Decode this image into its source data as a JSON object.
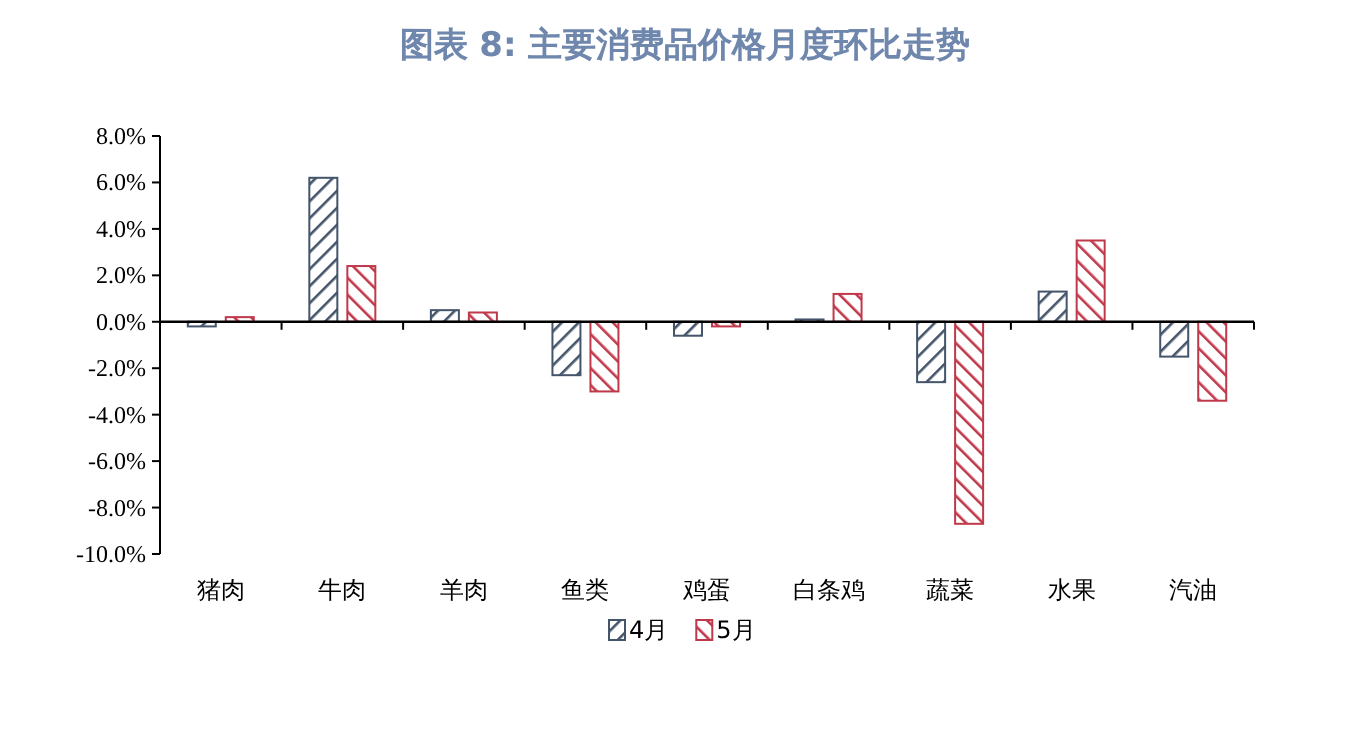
{
  "chart_data": {
    "type": "bar",
    "title": "图表 8:  主要消费品价格月度环比走势",
    "categories": [
      "猪肉",
      "牛肉",
      "羊肉",
      "鱼类",
      "鸡蛋",
      "白条鸡",
      "蔬菜",
      "水果",
      "汽油"
    ],
    "series": [
      {
        "name": "4月",
        "color": "#44546a",
        "values": [
          -0.2,
          6.2,
          0.5,
          -2.3,
          -0.6,
          0.1,
          -2.6,
          1.3,
          -1.5
        ]
      },
      {
        "name": "5月",
        "color": "#c0394b",
        "values": [
          0.2,
          2.4,
          0.4,
          -3.0,
          -0.2,
          1.2,
          -8.7,
          3.5,
          -3.4
        ]
      }
    ],
    "ylim": [
      -10,
      8
    ],
    "yticks": [
      {
        "value": -10,
        "label": "-10.0%"
      },
      {
        "value": -8,
        "label": "-8.0%"
      },
      {
        "value": -6,
        "label": "-6.0%"
      },
      {
        "value": -4,
        "label": "-4.0%"
      },
      {
        "value": -2,
        "label": "-2.0%"
      },
      {
        "value": 0,
        "label": "0.0%"
      },
      {
        "value": 2,
        "label": "2.0%"
      },
      {
        "value": 4,
        "label": "4.0%"
      },
      {
        "value": 6,
        "label": "6.0%"
      },
      {
        "value": 8,
        "label": "8.0%"
      }
    ],
    "legend": "bottom"
  }
}
